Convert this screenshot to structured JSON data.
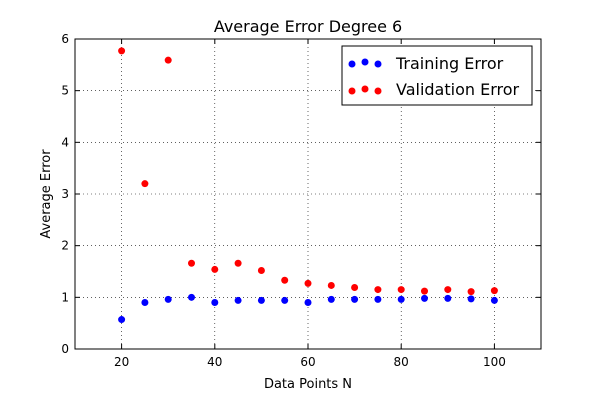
{
  "chart_data": {
    "type": "scatter",
    "title": "Average Error Degree 6",
    "xlabel": "Data Points N",
    "ylabel": "Average Error",
    "xlim": [
      10,
      110
    ],
    "ylim": [
      0,
      6
    ],
    "xticks": [
      20,
      40,
      60,
      80,
      100
    ],
    "yticks": [
      0,
      1,
      2,
      3,
      4,
      5,
      6
    ],
    "grid": true,
    "legend_position": "top-right",
    "series": [
      {
        "name": "Training Error",
        "color": "#0000ff",
        "x": [
          20,
          25,
          30,
          35,
          40,
          45,
          50,
          55,
          60,
          65,
          70,
          75,
          80,
          85,
          90,
          95,
          100
        ],
        "y": [
          0.57,
          0.9,
          0.96,
          1.0,
          0.9,
          0.94,
          0.94,
          0.94,
          0.9,
          0.96,
          0.96,
          0.96,
          0.96,
          0.98,
          0.98,
          0.97,
          0.94
        ]
      },
      {
        "name": "Validation Error",
        "color": "#ff0000",
        "x": [
          20,
          25,
          30,
          35,
          40,
          45,
          50,
          55,
          60,
          65,
          70,
          75,
          80,
          85,
          90,
          95,
          100
        ],
        "y": [
          5.77,
          3.2,
          5.59,
          1.66,
          1.54,
          1.66,
          1.52,
          1.33,
          1.27,
          1.23,
          1.19,
          1.15,
          1.15,
          1.12,
          1.15,
          1.11,
          1.13
        ]
      }
    ]
  }
}
